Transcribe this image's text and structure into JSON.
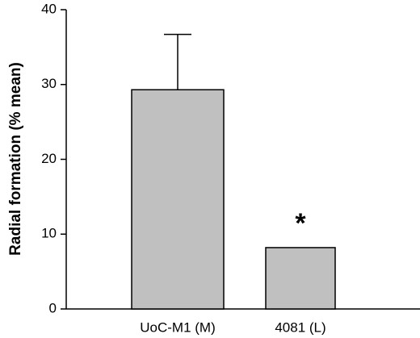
{
  "chart_data": {
    "type": "bar",
    "ylabel": "Radial formation (% mean)",
    "categories": [
      "UoC-M1 (M)",
      "4081 (L)"
    ],
    "values": [
      29.3,
      8.2
    ],
    "errors": [
      7.4,
      null
    ],
    "color": "#c0c0c0",
    "ylim": [
      0,
      40
    ],
    "yticks": [
      0,
      10,
      20,
      30,
      40
    ],
    "grid": false,
    "annotation": "*"
  }
}
